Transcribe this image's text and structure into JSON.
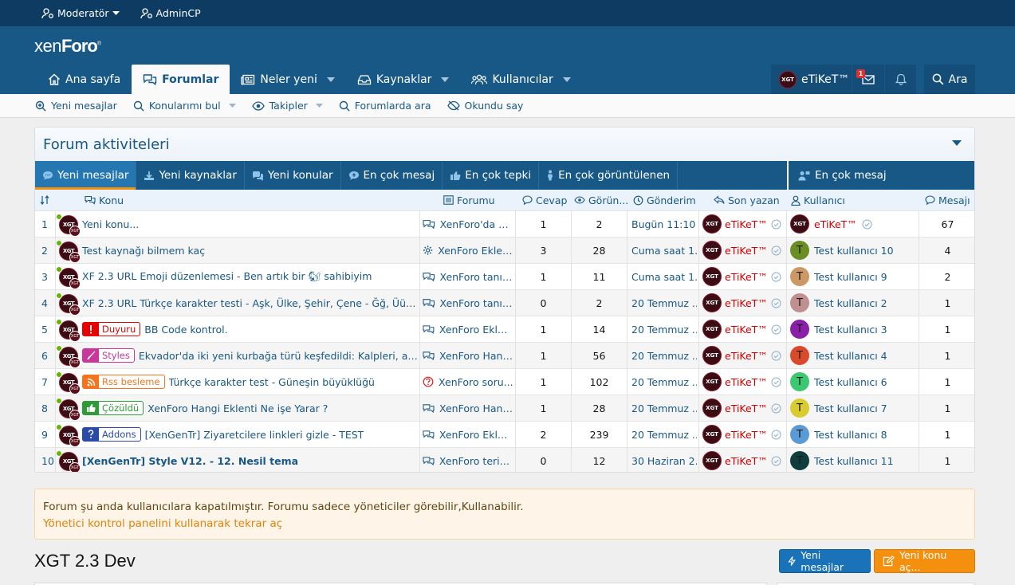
{
  "topbar": {
    "moderator": "Moderatör",
    "admincp": "AdminCP"
  },
  "header": {
    "logo_prefix": "xen",
    "logo_bold": "Foro"
  },
  "nav": {
    "tabs": [
      {
        "label": "Ana sayfa",
        "icon": "home-icon"
      },
      {
        "label": "Forumlar",
        "icon": "comments-icon"
      },
      {
        "label": "Neler yeni",
        "icon": "newspaper-icon"
      },
      {
        "label": "Kaynaklar",
        "icon": "inbox-icon"
      },
      {
        "label": "Kullanıcılar",
        "icon": "users-icon"
      }
    ],
    "user": "eTiKeT™",
    "inbox_count": "1",
    "search": "Ara"
  },
  "subnav": [
    {
      "label": "Yeni mesajlar"
    },
    {
      "label": "Konularımı bul"
    },
    {
      "label": "Takipler"
    },
    {
      "label": "Forumlarda ara"
    },
    {
      "label": "Okundu say"
    }
  ],
  "panel": {
    "title": "Forum aktiviteleri",
    "tabs": [
      "Yeni mesajlar",
      "Yeni kaynaklar",
      "Yeni konular",
      "En çok mesaj",
      "En çok tepki",
      "En çok görüntülenen"
    ],
    "right_tab": "En çok mesaj",
    "columns": {
      "konu": "Konu",
      "forum": "Forumu",
      "cevap": "Cevap",
      "goruntu": "Görün...",
      "gonderim": "Gönderim",
      "son": "Son yazan",
      "kullanici": "Kullanıcı",
      "mesaj": "Mesajı"
    },
    "rows": [
      {
        "n": "1",
        "prefix": "",
        "title": "Yeni konu...",
        "bold": false,
        "forum": "XenForo'da N...",
        "ficon": "comments-icon",
        "cevap": "1",
        "gor": "2",
        "date": "Bugün 11:10",
        "last": "eTiKeT™",
        "user": "eTiKeT™",
        "ucolor": "#3a0d14",
        "ulet": "",
        "msg": "67"
      },
      {
        "n": "2",
        "prefix": "",
        "title": "Test kaynağı bilmem kaç",
        "bold": false,
        "forum": "XenForo Eklen...",
        "ficon": "gear-icon",
        "cevap": "3",
        "gor": "28",
        "date": "Cuma saat 1...",
        "last": "eTiKeT™",
        "user": "Test kullanıcı 10",
        "ucolor": "#6b8e23",
        "ulet": "T",
        "msg": "4"
      },
      {
        "n": "3",
        "prefix": "",
        "title": "XF 2.3 URL Emoji düzenlemesi - Ben artık bir 🐿 sahibiyim",
        "bold": false,
        "forum": "XenForo tanıy...",
        "ficon": "comments-icon",
        "cevap": "1",
        "gor": "11",
        "date": "Cuma saat 1...",
        "last": "eTiKeT™",
        "user": "Test kullanıcı 9",
        "ucolor": "#cc9966",
        "ulet": "T",
        "msg": "2"
      },
      {
        "n": "4",
        "prefix": "",
        "title": "XF 2.3 URL Türkçe karakter testi - Aşk, Ülke, Şehir, Çene - Ğğ, Üü, Şş, Iı, ...",
        "bold": false,
        "forum": "XenForo tanıy...",
        "ficon": "comments-icon",
        "cevap": "0",
        "gor": "2",
        "date": "20 Temmuz ...",
        "last": "eTiKeT™",
        "user": "Test kullanıcı 2",
        "ucolor": "#c09090",
        "ulet": "T",
        "msg": "1"
      },
      {
        "n": "5",
        "prefix": "Duyuru",
        "title": "BB Code kontrol.",
        "bold": false,
        "forum": "XenForo Eklen...",
        "ficon": "comments-icon",
        "cevap": "1",
        "gor": "14",
        "date": "20 Temmuz ...",
        "last": "eTiKeT™",
        "user": "Test kullanıcı 3",
        "ucolor": "#8a1fa8",
        "ulet": "T",
        "msg": "1"
      },
      {
        "n": "6",
        "prefix": "Styles",
        "title": "Ekvador'da iki yeni kurbağa türü keşfedildi: Kalpleri, akciğe...",
        "bold": false,
        "forum": "XenForo Hang...",
        "ficon": "comments-icon",
        "cevap": "1",
        "gor": "56",
        "date": "20 Temmuz ...",
        "last": "eTiKeT™",
        "user": "Test kullanıcı 4",
        "ucolor": "#d84a2a",
        "ulet": "T",
        "msg": "1"
      },
      {
        "n": "7",
        "prefix": "Rss besleme",
        "title": "Türkçe karakter test - Güneşin büyüklüğü",
        "bold": false,
        "forum": "XenForo soru...",
        "ficon": "question-icon",
        "cevap": "1",
        "gor": "102",
        "date": "20 Temmuz ...",
        "last": "eTiKeT™",
        "user": "Test kullanıcı 6",
        "ucolor": "#3cc870",
        "ulet": "T",
        "msg": "1"
      },
      {
        "n": "8",
        "prefix": "Çözüldü",
        "title": "XenForo Hangi Eklenti Ne işe Yarar ?",
        "bold": false,
        "forum": "XenForo Hang...",
        "ficon": "comments-icon",
        "cevap": "1",
        "gor": "28",
        "date": "20 Temmuz ...",
        "last": "eTiKeT™",
        "user": "Test kullanıcı 7",
        "ucolor": "#d8cc30",
        "ulet": "T",
        "msg": "1"
      },
      {
        "n": "9",
        "prefix": "Addons",
        "title": "[XenGenTr] Ziyaretcilere linkleri gizle - TEST",
        "bold": false,
        "forum": "XenForo Eklen...",
        "ficon": "comments-icon",
        "cevap": "2",
        "gor": "239",
        "date": "20 Temmuz ...",
        "last": "eTiKeT™",
        "user": "Test kullanıcı 8",
        "ucolor": "#5b9bd5",
        "ulet": "T",
        "msg": "1"
      },
      {
        "n": "10",
        "prefix": "",
        "title": "[XenGenTr] Style V12. - 12. Nesil tema",
        "bold": true,
        "forum": "XenForo terim...",
        "ficon": "comments-icon",
        "cevap": "0",
        "gor": "12",
        "date": "30 Haziran 2...",
        "last": "eTiKeT™",
        "user": "Test kullanıcı 11",
        "ucolor": "#0f3d3d",
        "ulet": "T",
        "msg": "1"
      }
    ]
  },
  "prefix_styles": {
    "Duyuru": {
      "color": "#e60000",
      "bg": "#ffffff",
      "icon": "exclamation-icon"
    },
    "Styles": {
      "color": "#c8379a",
      "bg": "#ffffff",
      "icon": "brush-icon"
    },
    "Rss besleme": {
      "color": "#f5731d",
      "bg": "#ffffff",
      "icon": "rss-icon"
    },
    "Çözüldü": {
      "color": "#2e9a3a",
      "bg": "#ffffff",
      "icon": "thumbs-up-icon"
    },
    "Addons": {
      "color": "#2a4aa8",
      "bg": "#ffffff",
      "icon": "question-icon"
    }
  },
  "notice": {
    "line1": "Forum şu anda kullanıcılara kapatılmıştır. Forumu sadece yöneticiler görebilir,Kullanabilir.",
    "line2": "Yönetici kontrol panelini kullanarak tekrar aç"
  },
  "section": {
    "title": "XGT 2.3 Dev",
    "btn_new_posts": "Yeni mesajlar",
    "btn_new_thread": "Yeni konu aç..."
  }
}
